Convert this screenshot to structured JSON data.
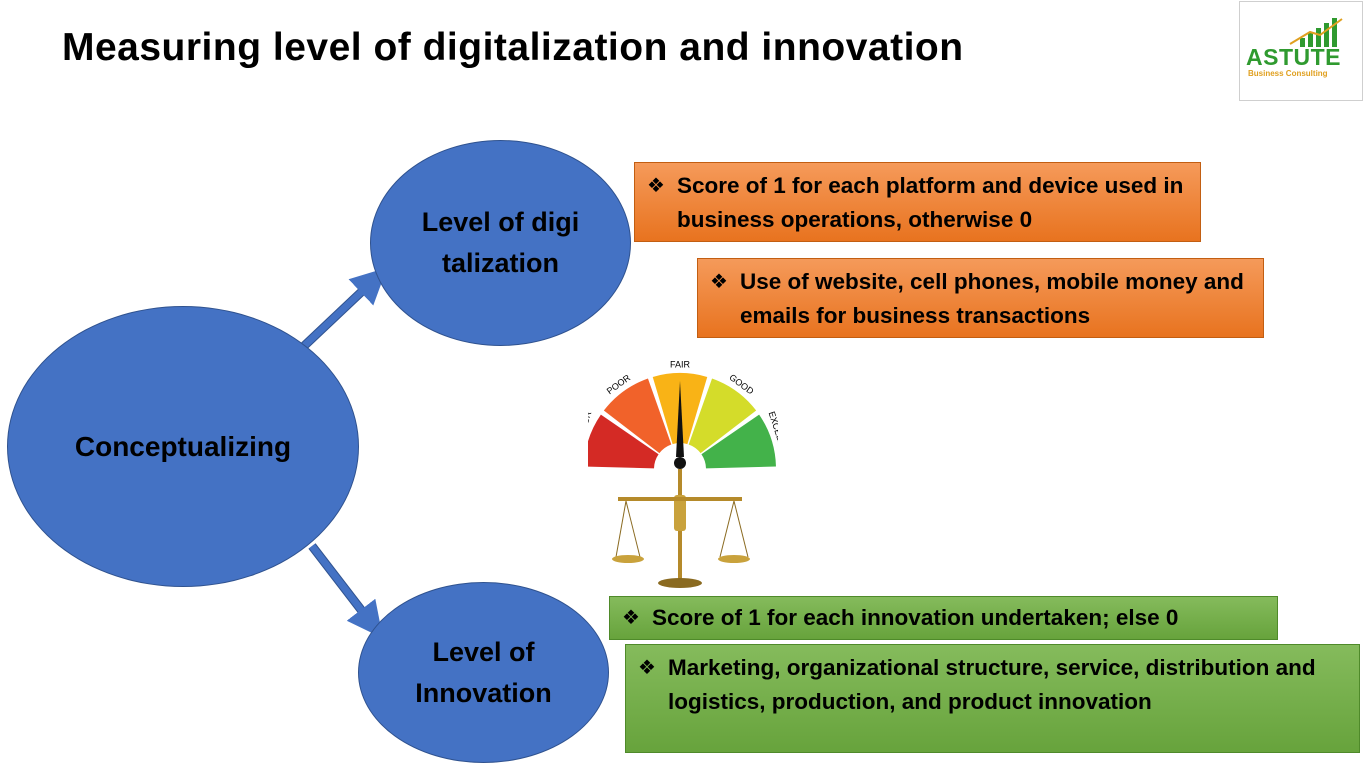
{
  "title": "Measuring level of digitalization and innovation",
  "logo": {
    "name": "ASTUTE",
    "subtitle": "Business Consulting"
  },
  "nodes": {
    "main": "Conceptualizing",
    "digitalization": "Level of digitalization",
    "innovation": "Level of Innovation"
  },
  "digitalization_boxes": [
    "Score of 1 for each platform and device used in business operations, otherwise 0",
    "Use of website, cell phones, mobile money and emails for business transactions"
  ],
  "innovation_boxes": [
    "Score of 1 for each innovation undertaken; else 0",
    "Marketing, organizational structure, service, distribution and logistics, production, and product innovation"
  ],
  "gauge": {
    "labels": [
      "VERY POOR",
      "POOR",
      "FAIR",
      "GOOD",
      "EXCELLENT"
    ],
    "colors": [
      "#d42a25",
      "#f1622a",
      "#f9b316",
      "#d4dc2a",
      "#43b24a"
    ]
  },
  "bullet_icon": "diamond-bullet-icon"
}
